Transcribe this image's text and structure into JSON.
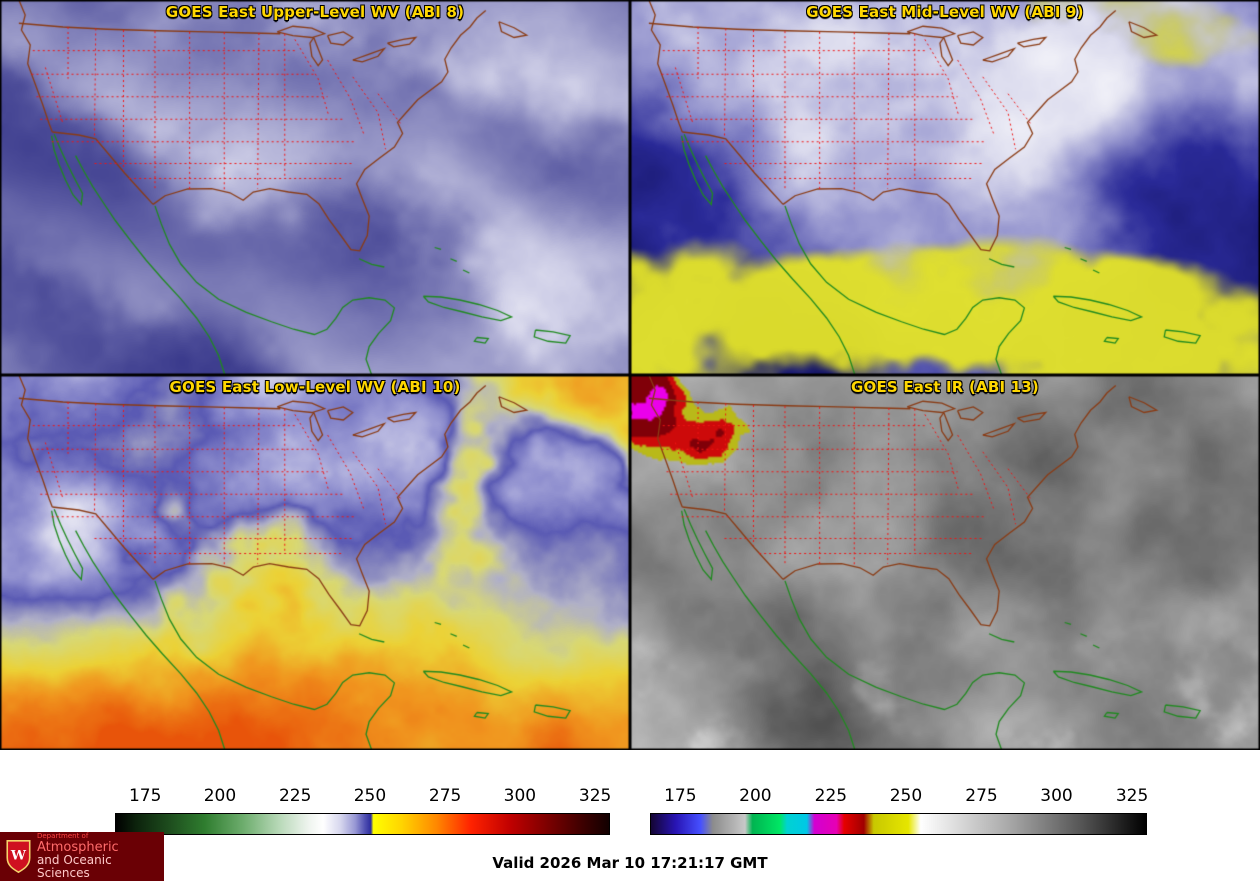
{
  "panels": [
    {
      "title": "GOES East Upper-Level WV (ABI 8)"
    },
    {
      "title": "GOES East Mid-Level WV (ABI 9)"
    },
    {
      "title": "GOES East Low-Level WV (ABI 10)"
    },
    {
      "title": "GOES East IR (ABI 13)"
    }
  ],
  "colorbars": [
    {
      "name": "water-vapor-enhancement-scale",
      "ticks": [
        "175",
        "200",
        "225",
        "250",
        "275",
        "300",
        "325"
      ],
      "tick_positions": [
        0.061,
        0.212,
        0.364,
        0.515,
        0.667,
        0.818,
        0.97
      ],
      "stops": [
        {
          "p": 0,
          "c": "#000000"
        },
        {
          "p": 0.04,
          "c": "#0c220c"
        },
        {
          "p": 0.11,
          "c": "#1e4e1e"
        },
        {
          "p": 0.18,
          "c": "#2f7d2f"
        },
        {
          "p": 0.26,
          "c": "#6fae6f"
        },
        {
          "p": 0.33,
          "c": "#b7d8b7"
        },
        {
          "p": 0.39,
          "c": "#eef4ee"
        },
        {
          "p": 0.42,
          "c": "#ffffff"
        },
        {
          "p": 0.455,
          "c": "#d7d7ee"
        },
        {
          "p": 0.485,
          "c": "#9898d4"
        },
        {
          "p": 0.505,
          "c": "#5050b2"
        },
        {
          "p": 0.517,
          "c": "#2d2d9e"
        },
        {
          "p": 0.522,
          "c": "#ffff00"
        },
        {
          "p": 0.58,
          "c": "#ffd400"
        },
        {
          "p": 0.65,
          "c": "#ff8800"
        },
        {
          "p": 0.72,
          "c": "#ff2200"
        },
        {
          "p": 0.8,
          "c": "#c00000"
        },
        {
          "p": 0.88,
          "c": "#780000"
        },
        {
          "p": 0.95,
          "c": "#3a0000"
        },
        {
          "p": 1,
          "c": "#120000"
        }
      ]
    },
    {
      "name": "ir-enhancement-scale",
      "ticks": [
        "175",
        "200",
        "225",
        "250",
        "275",
        "300",
        "325"
      ],
      "tick_positions": [
        0.061,
        0.212,
        0.364,
        0.515,
        0.667,
        0.818,
        0.97
      ],
      "stops": [
        {
          "p": 0,
          "c": "#140533"
        },
        {
          "p": 0.05,
          "c": "#2814b4"
        },
        {
          "p": 0.1,
          "c": "#4650ff"
        },
        {
          "p": 0.125,
          "c": "#8c8c8c"
        },
        {
          "p": 0.19,
          "c": "#c8c8c8"
        },
        {
          "p": 0.205,
          "c": "#00b450"
        },
        {
          "p": 0.26,
          "c": "#00e664"
        },
        {
          "p": 0.275,
          "c": "#00d2d2"
        },
        {
          "p": 0.315,
          "c": "#00c8e6"
        },
        {
          "p": 0.33,
          "c": "#d200d2"
        },
        {
          "p": 0.375,
          "c": "#e600b4"
        },
        {
          "p": 0.39,
          "c": "#e60000"
        },
        {
          "p": 0.43,
          "c": "#a00000"
        },
        {
          "p": 0.45,
          "c": "#c8c800"
        },
        {
          "p": 0.52,
          "c": "#e6e600"
        },
        {
          "p": 0.545,
          "c": "#ffffff"
        },
        {
          "p": 0.72,
          "c": "#aaaaaa"
        },
        {
          "p": 0.87,
          "c": "#555555"
        },
        {
          "p": 1,
          "c": "#000000"
        }
      ]
    }
  ],
  "footer": {
    "valid_time": "Valid 2026 Mar 10 17:21:17 GMT"
  },
  "logo": {
    "crest_letter": "W",
    "department": "Department of",
    "line1": "Atmospheric",
    "line2": "and Oceanic Sciences"
  },
  "colors": {
    "panel_title": "#ffd700",
    "state_borders": "#f01414",
    "us_coast": "#8a3b14",
    "intl_coast": "#1f8a1f",
    "logo_bg": "#6a0005"
  }
}
